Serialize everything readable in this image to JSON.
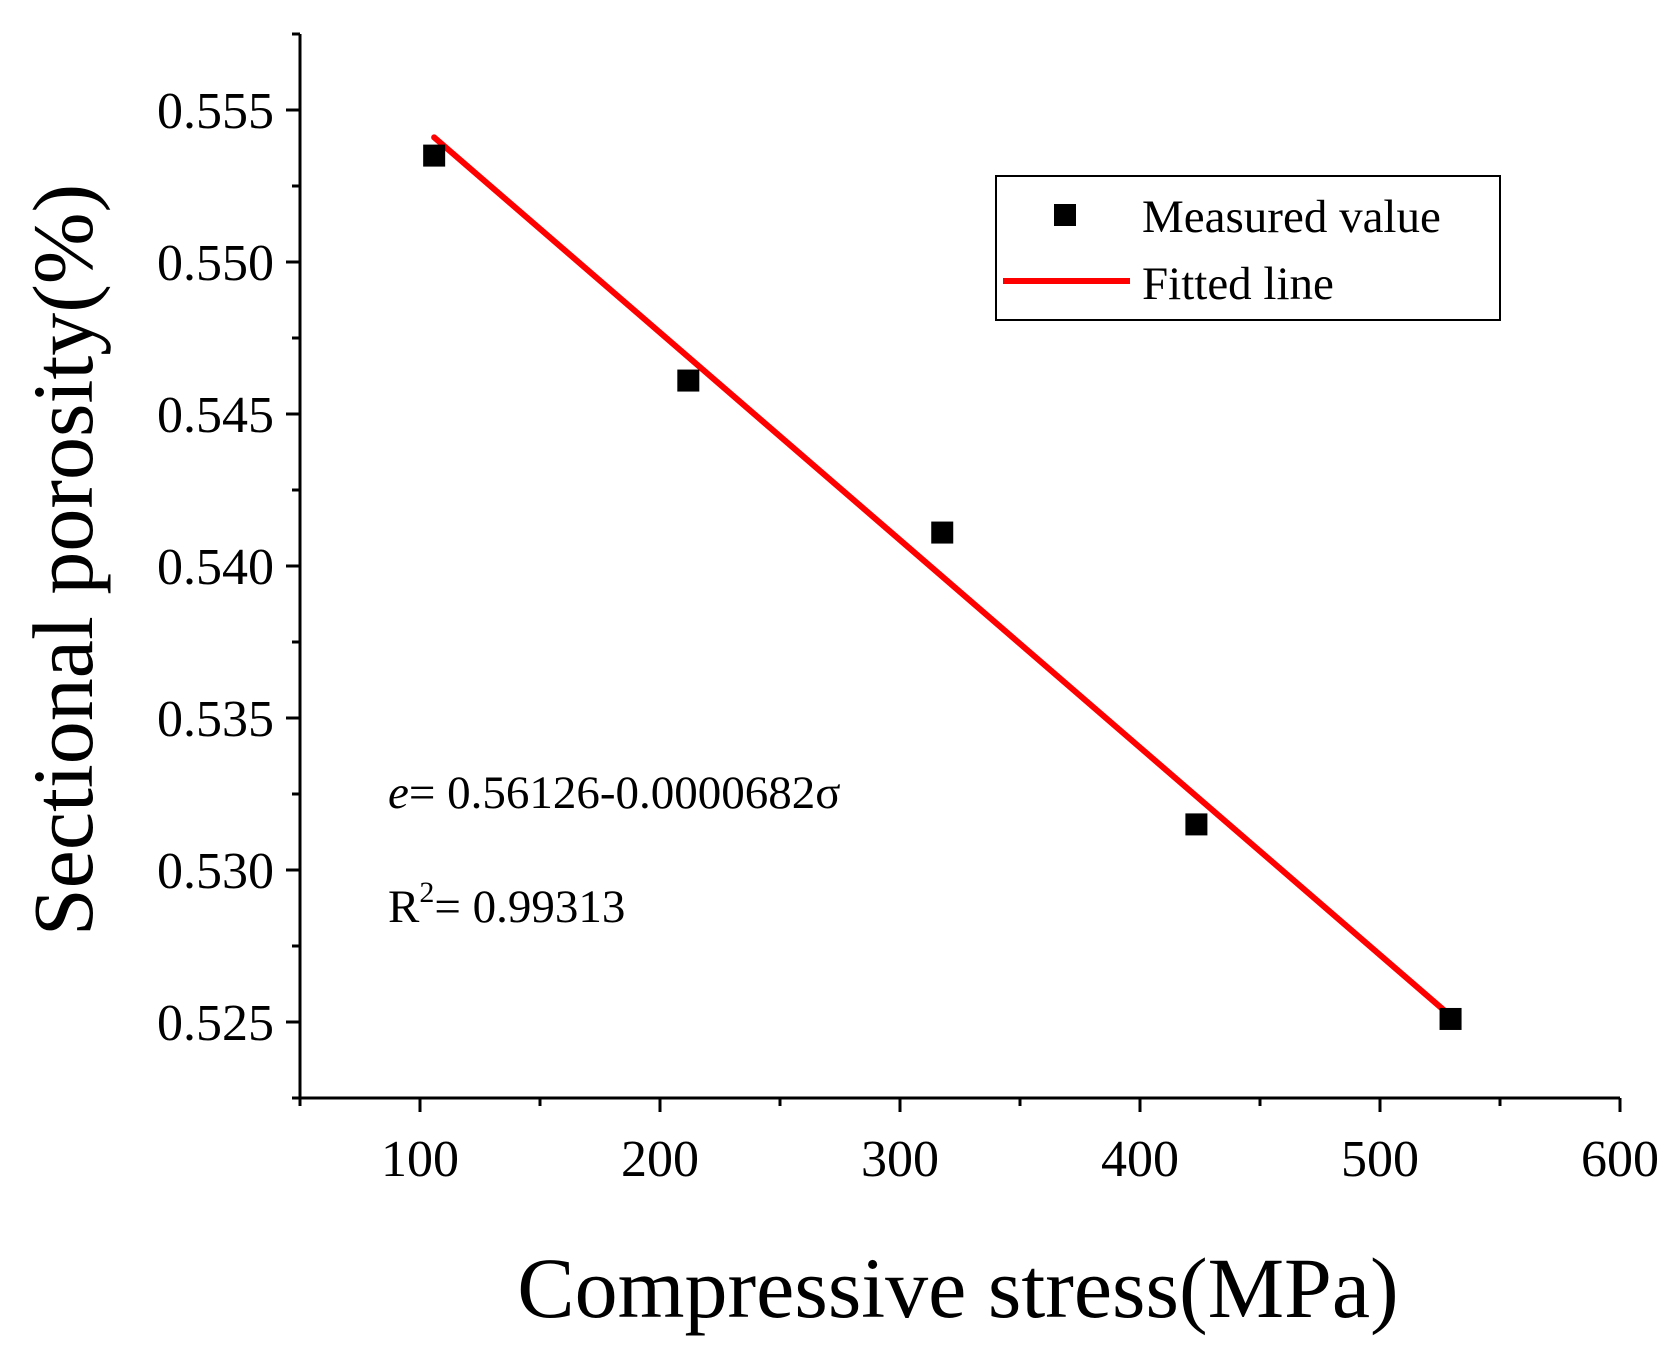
{
  "chart_data": {
    "type": "scatter",
    "xlabel": "Compressive stress(MPa)",
    "ylabel": "Sectional porosity(%)",
    "xlim": [
      50,
      600
    ],
    "ylim": [
      0.5225,
      0.5575
    ],
    "x_ticks": [
      100,
      200,
      300,
      400,
      500,
      600
    ],
    "x_tick_labels": [
      "100",
      "200",
      "300",
      "400",
      "500",
      "600"
    ],
    "y_ticks": [
      0.525,
      0.53,
      0.535,
      0.54,
      0.545,
      0.55,
      0.555
    ],
    "y_tick_labels": [
      "0.525",
      "0.530",
      "0.535",
      "0.540",
      "0.545",
      "0.550",
      "0.555"
    ],
    "grid": false,
    "series": [
      {
        "name": "Measured value",
        "kind": "scatter",
        "marker": "square",
        "color": "#000000",
        "x": [
          105.9,
          211.8,
          317.6,
          423.5,
          529.4
        ],
        "y": [
          0.5535,
          0.5461,
          0.5411,
          0.5315,
          0.5251
        ]
      },
      {
        "name": "Fitted line",
        "kind": "line",
        "color": "#ff0000",
        "x": [
          105.9,
          529.4
        ],
        "y": [
          0.5541,
          0.5252
        ]
      }
    ],
    "legend": {
      "position": "top-right",
      "entries": [
        "Measured value",
        "Fitted line"
      ]
    },
    "annotations": {
      "equation_var": "e",
      "equation_rest": "= 0.56126-0.0000682σ",
      "r2_base": "R",
      "r2_sup": "2",
      "r2_rest": "= 0.99313"
    }
  }
}
